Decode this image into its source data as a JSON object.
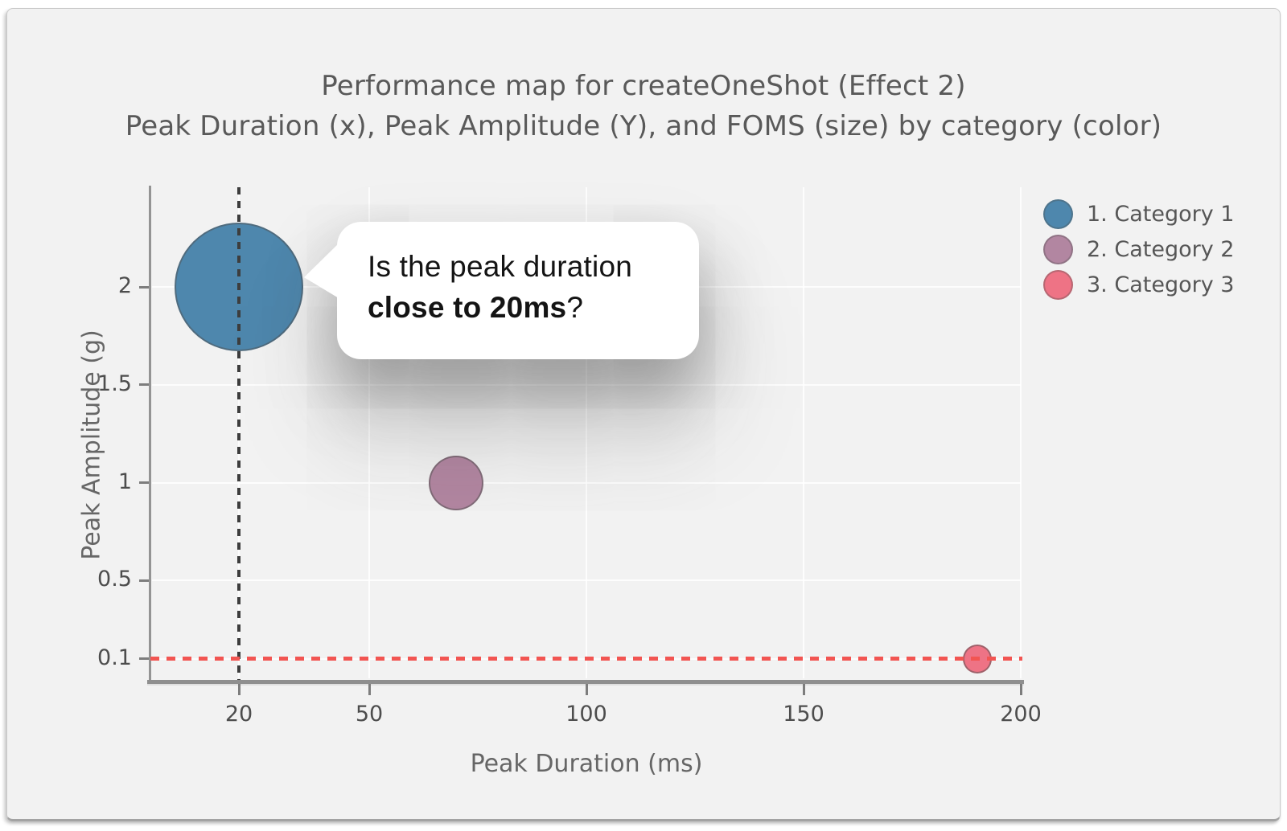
{
  "title": "Performance map for createOneShot (Effect 2)",
  "subtitle": "Peak Duration (x), Peak Amplitude (Y), and FOMS (size) by category (color)",
  "tooltip": {
    "line1": "Is the peak duration",
    "bold_text": "close to 20ms",
    "suffix": "?"
  },
  "colors": {
    "card_background": "#f2f2f2",
    "grid_line": "#ffffff",
    "axis_line": "#8f8f8f",
    "vertical_ref_line": "#3d3d3d",
    "horizontal_ref_line": "#f25552",
    "title_text": "#595959",
    "tick_text": "#4d4d4d"
  },
  "chart_data": {
    "type": "scatter",
    "subtype": "bubble",
    "title": "Performance map for createOneShot (Effect 2)",
    "xlabel": "Peak Duration (ms)",
    "ylabel": "Peak Amplitude (g)",
    "x_ticks": [
      20,
      50,
      100,
      150,
      200
    ],
    "y_ticks": [
      0.1,
      0.5,
      1,
      1.5,
      2
    ],
    "xlim": [
      0,
      200
    ],
    "ylim": [
      0,
      2.51
    ],
    "grid": true,
    "legend_position": "top-right-outside",
    "size_encodes": "FOMS",
    "reference_lines": [
      {
        "axis": "x",
        "value": 20,
        "style": "dashed",
        "color": "#3d3d3d"
      },
      {
        "axis": "y",
        "value": 0.1,
        "style": "dashed",
        "color": "#f25552"
      }
    ],
    "series": [
      {
        "name": "1. Category 1",
        "color": "#4e87ad",
        "points": [
          {
            "x": 20,
            "y": 2.0,
            "radius_px": 80
          }
        ]
      },
      {
        "name": "2. Category 2",
        "color": "#b286a1",
        "points": [
          {
            "x": 70,
            "y": 1.0,
            "radius_px": 34
          }
        ]
      },
      {
        "name": "3. Category 3",
        "color": "#ee7385",
        "points": [
          {
            "x": 190,
            "y": 0.1,
            "radius_px": 18
          }
        ]
      }
    ]
  }
}
